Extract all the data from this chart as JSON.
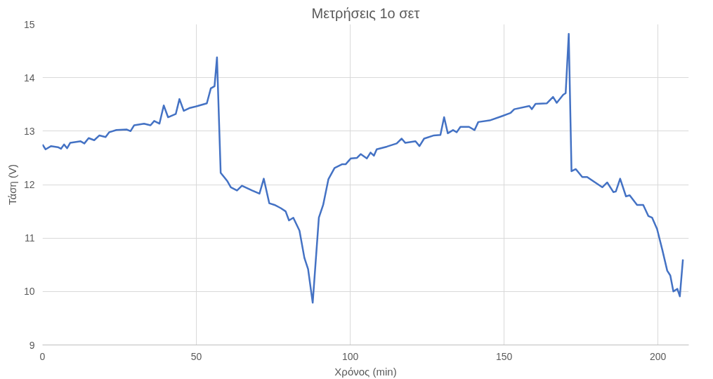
{
  "chart_data": {
    "type": "line",
    "title": "Μετρήσεις 1ο σετ",
    "xlabel": "Χρόνος (min)",
    "ylabel": "Τάση (V)",
    "xlim": [
      0,
      210
    ],
    "xticks": [
      0,
      50,
      100,
      150,
      200
    ],
    "ylim": [
      9,
      15
    ],
    "yticks": [
      9,
      10,
      11,
      12,
      13,
      14,
      15
    ],
    "grid": true,
    "marker": "none",
    "line_style": "solid",
    "series": [
      {
        "color": "#4472c4",
        "x": [
          0,
          1,
          2.8,
          5,
          6,
          7,
          8,
          9,
          12.4,
          13.6,
          15,
          16.8,
          18.5,
          20.5,
          21.7,
          24,
          27.4,
          28.6,
          29.8,
          33,
          35.1,
          36.3,
          38,
          39.4,
          40.8,
          43.3,
          44.5,
          45.9,
          47.7,
          49.8,
          53.4,
          54.7,
          55.9,
          56.7,
          57.9,
          60,
          61.2,
          63.2,
          64.8,
          68.1,
          70.5,
          71.9,
          73.7,
          75.4,
          77.4,
          79,
          80.1,
          81.5,
          83.5,
          85.1,
          86.3,
          87.8,
          89.8,
          91.2,
          92.9,
          94.9,
          97.3,
          98.5,
          100.2,
          102.2,
          103.4,
          105.4,
          106.6,
          107.7,
          108.6,
          111.9,
          115.1,
          116.7,
          117.9,
          121.2,
          122.5,
          124,
          127.2,
          129.3,
          130.5,
          131.7,
          133.4,
          134.6,
          135.8,
          138.6,
          140.4,
          141.6,
          145.3,
          149.3,
          152.1,
          153.3,
          158.2,
          159,
          160.2,
          163.9,
          165.9,
          167.1,
          169.2,
          170,
          171,
          171.9,
          173.3,
          175.4,
          177,
          181.9,
          183.5,
          185.5,
          186.3,
          187.7,
          189.6,
          190.8,
          193.2,
          195.2,
          196.9,
          198.1,
          199.7,
          201.4,
          203,
          204,
          205,
          206.3,
          207.1,
          208.1
        ],
        "values": [
          12.75,
          12.66,
          12.72,
          12.7,
          12.67,
          12.75,
          12.68,
          12.78,
          12.81,
          12.77,
          12.87,
          12.83,
          12.92,
          12.89,
          12.98,
          13.02,
          13.03,
          13.0,
          13.11,
          13.14,
          13.11,
          13.19,
          13.14,
          13.48,
          13.26,
          13.32,
          13.6,
          13.38,
          13.43,
          13.46,
          13.52,
          13.8,
          13.84,
          14.38,
          12.22,
          12.07,
          11.95,
          11.89,
          11.98,
          11.89,
          11.83,
          12.11,
          11.65,
          11.62,
          11.56,
          11.5,
          11.33,
          11.38,
          11.14,
          10.63,
          10.42,
          9.79,
          11.38,
          11.62,
          12.1,
          12.31,
          12.38,
          12.38,
          12.49,
          12.5,
          12.57,
          12.49,
          12.6,
          12.54,
          12.66,
          12.71,
          12.77,
          12.86,
          12.78,
          12.81,
          12.72,
          12.86,
          12.92,
          12.93,
          13.26,
          12.96,
          13.02,
          12.98,
          13.08,
          13.08,
          13.02,
          13.17,
          13.2,
          13.28,
          13.34,
          13.41,
          13.47,
          13.41,
          13.51,
          13.52,
          13.64,
          13.53,
          13.68,
          13.71,
          14.82,
          12.25,
          12.29,
          12.14,
          12.14,
          11.95,
          12.04,
          11.86,
          11.87,
          12.11,
          11.78,
          11.8,
          11.62,
          11.62,
          11.41,
          11.38,
          11.17,
          10.78,
          10.39,
          10.3,
          10.0,
          10.05,
          9.91,
          10.6
        ]
      }
    ]
  }
}
